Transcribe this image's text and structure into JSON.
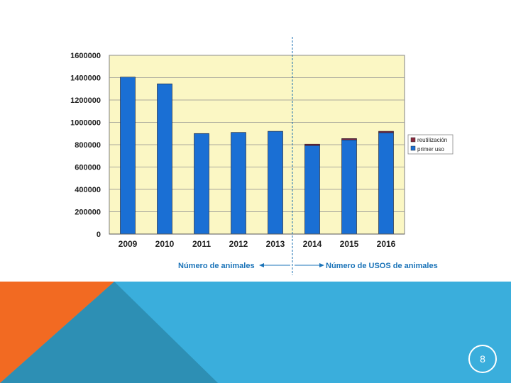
{
  "slide": {
    "page_number": "8",
    "colors": {
      "footer_blue": "#3aaedc",
      "footer_teal": "#2d8fb4",
      "footer_orange": "#f26a22",
      "plot_bg": "#fbf7c4"
    }
  },
  "chart_data": {
    "type": "bar",
    "stacked": true,
    "title": "",
    "xlabel": "",
    "ylabel": "",
    "categories": [
      "2009",
      "2010",
      "2011",
      "2012",
      "2013",
      "2014",
      "2015",
      "2016"
    ],
    "series": [
      {
        "name": "primer uso",
        "color": "#1a6fd4",
        "values": [
          1405000,
          1345000,
          900000,
          910000,
          920000,
          793000,
          843000,
          908000
        ]
      },
      {
        "name": "reutilización",
        "color": "#8b2a3f",
        "values": [
          0,
          0,
          0,
          0,
          0,
          12000,
          12000,
          12000
        ]
      }
    ],
    "ylim": [
      0,
      1600000
    ],
    "yticks": [
      "0",
      "200000",
      "400000",
      "600000",
      "800000",
      "1000000",
      "1200000",
      "1400000",
      "1600000"
    ],
    "ytick_values": [
      0,
      200000,
      400000,
      600000,
      800000,
      1000000,
      1200000,
      1400000,
      1600000
    ],
    "grid": true,
    "legend": {
      "position": "right",
      "entries": [
        "reutilización",
        "primer uso"
      ]
    },
    "annotations": {
      "left": "Número de animales",
      "right": "Número de USOS de animales"
    }
  }
}
